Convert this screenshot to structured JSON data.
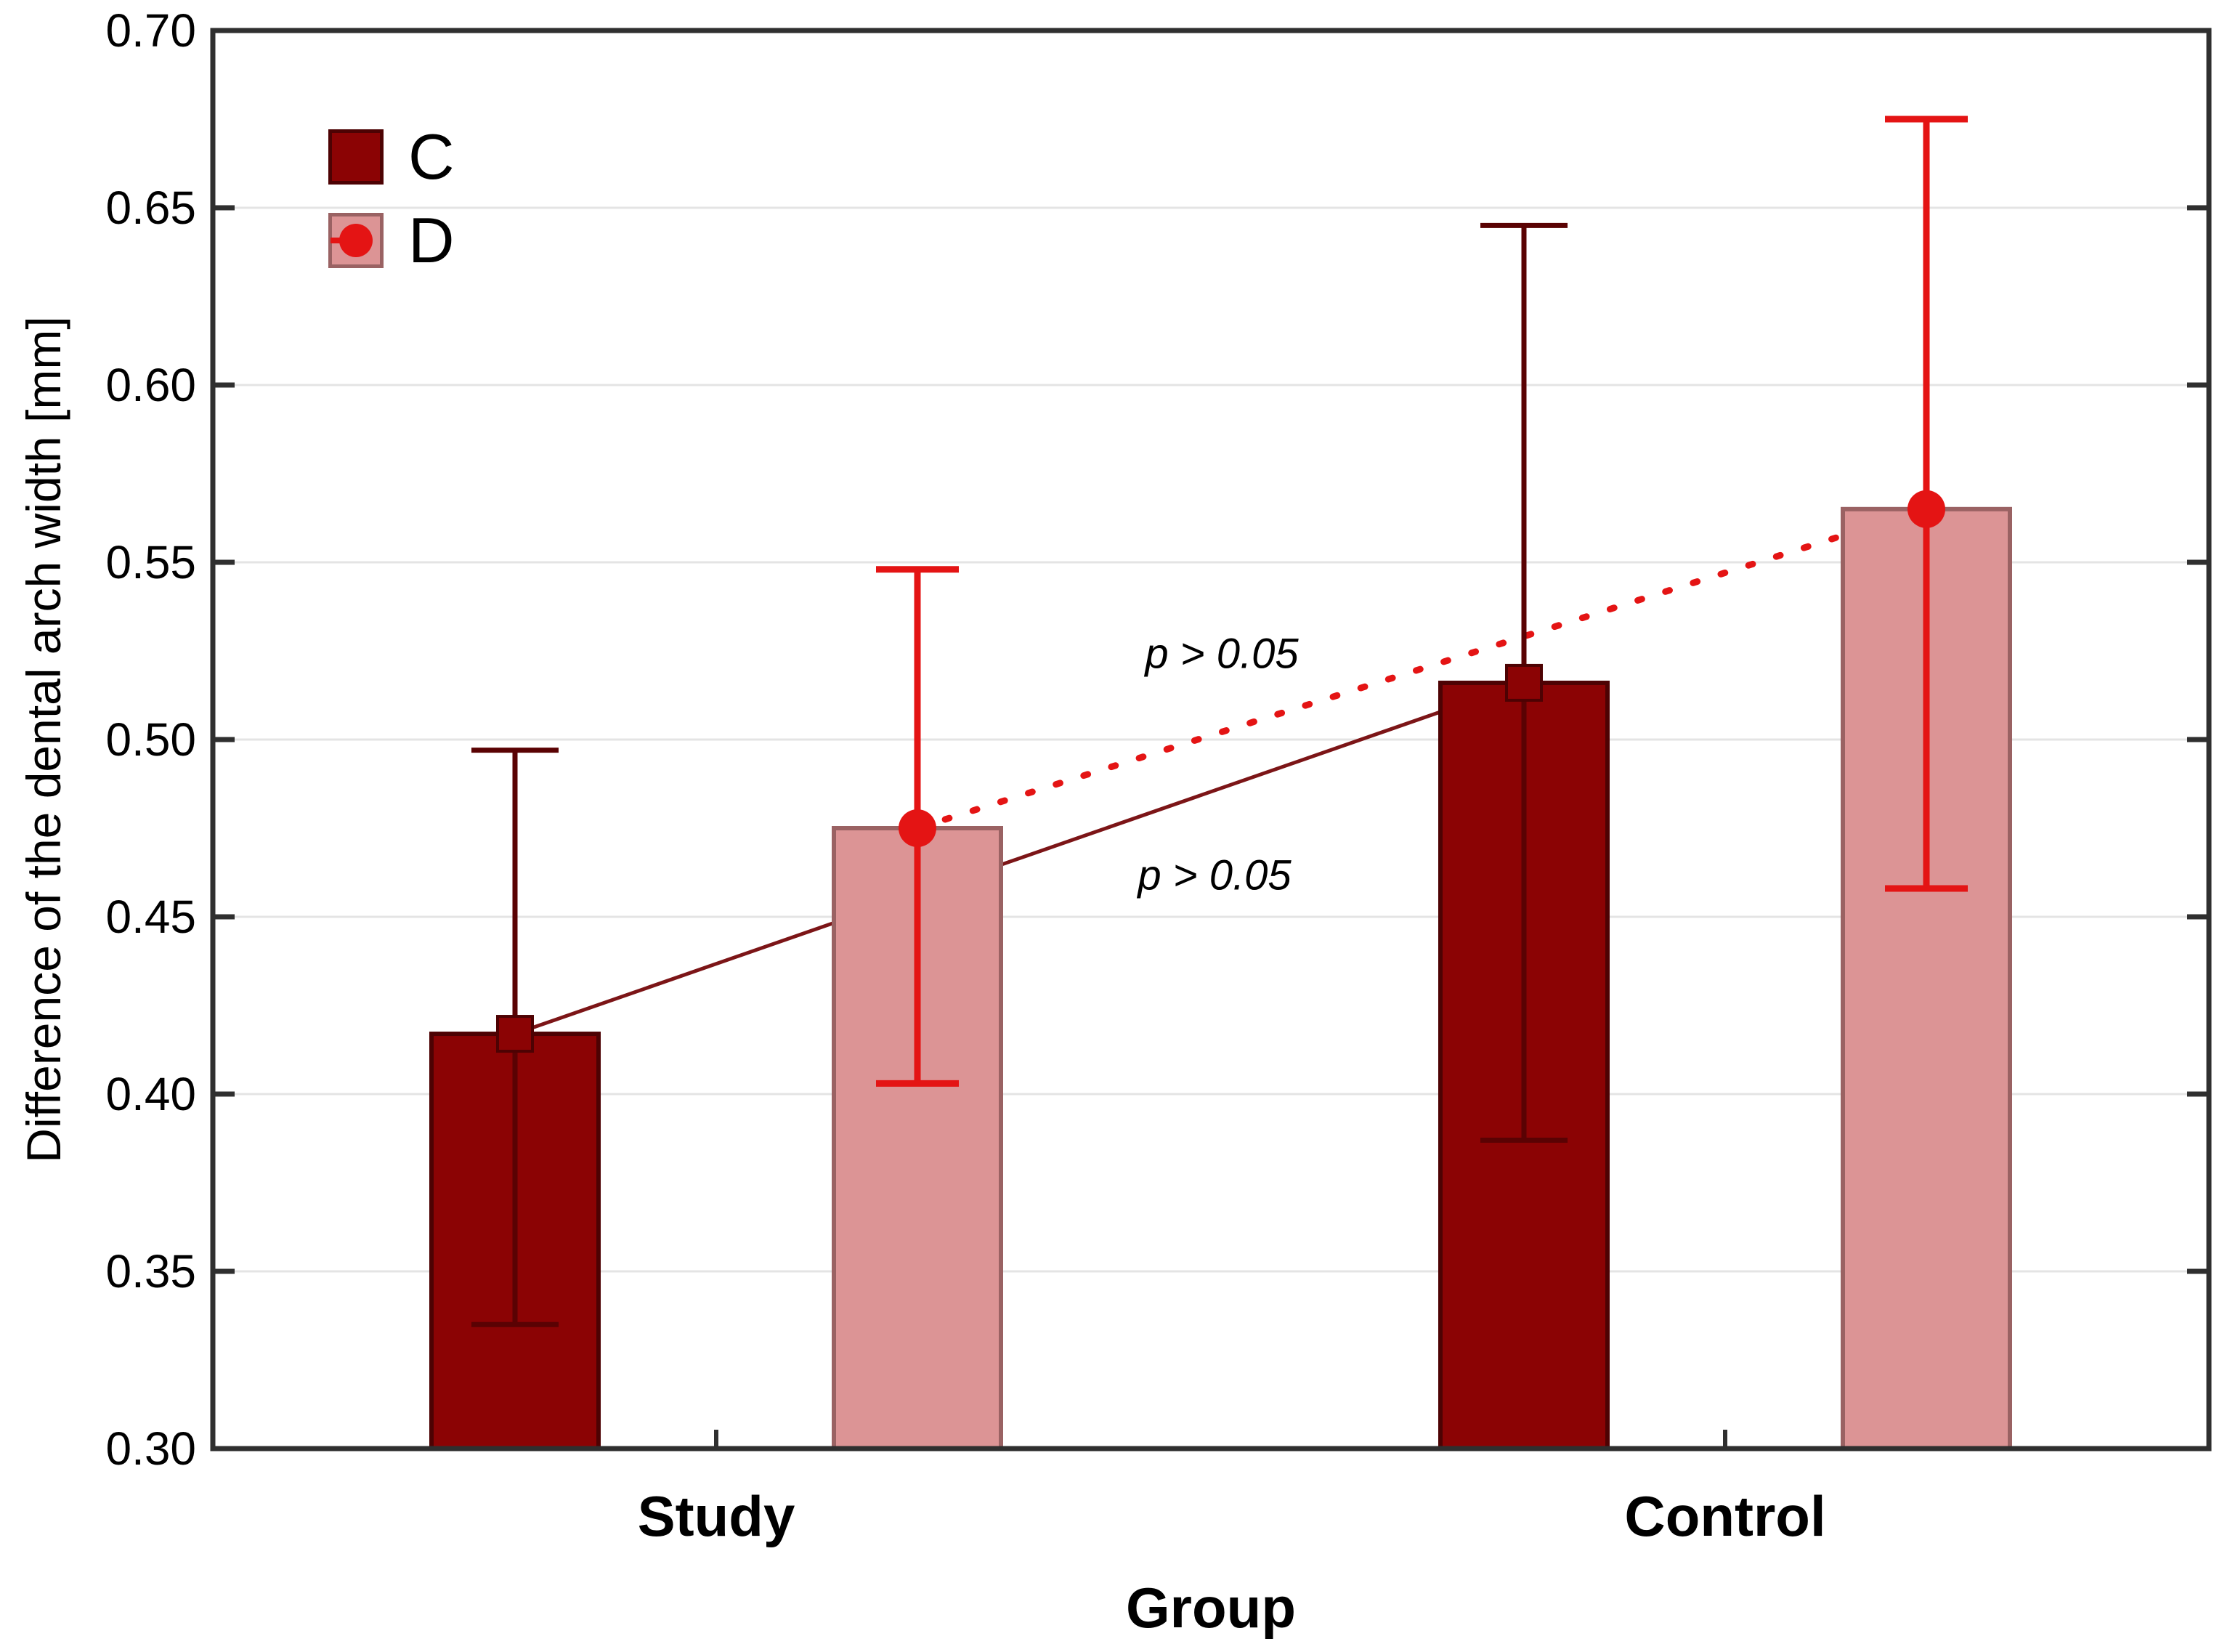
{
  "axes": {
    "ylabel": "Difference of the dental arch width [mm]",
    "xlabel": "Group",
    "yticks": [
      "0.70",
      "0.65",
      "0.60",
      "0.55",
      "0.50",
      "0.45",
      "0.40",
      "0.35",
      "0.30"
    ],
    "categories": [
      "Study",
      "Control"
    ]
  },
  "legend": {
    "items": [
      {
        "label": "C"
      },
      {
        "label": "D"
      }
    ]
  },
  "annotations": [
    {
      "text": "p > 0.05"
    },
    {
      "text": "p > 0.05"
    }
  ],
  "colors": {
    "c_fill": "#8b0304",
    "c_border": "#4d0203",
    "c_whisker": "#5a0203",
    "c_line": "#7c1517",
    "d_fill": "#dc9495",
    "d_border": "#9a6263",
    "d_red": "#e41414",
    "grid": "#e4e4e4",
    "frame": "#2f2f2f"
  },
  "chart_data": {
    "type": "bar",
    "title": "",
    "xlabel": "Group",
    "ylabel": "Difference of the dental arch width [mm]",
    "categories": [
      "Study",
      "Control"
    ],
    "ylim": [
      0.3,
      0.7
    ],
    "ytick_step": 0.05,
    "grid": true,
    "legend_position": "upper-left-inside",
    "series": [
      {
        "name": "C",
        "style": "bar-with-error",
        "marker": "square",
        "connector": "solid",
        "values": [
          0.417,
          0.516
        ],
        "err_upper": [
          0.497,
          0.645
        ],
        "err_lower": [
          0.335,
          0.387
        ]
      },
      {
        "name": "D",
        "style": "bar-with-error",
        "marker": "circle",
        "connector": "dotted",
        "values": [
          0.475,
          0.565
        ],
        "err_upper": [
          0.548,
          0.675
        ],
        "err_lower": [
          0.403,
          0.458
        ]
      }
    ],
    "annotations": [
      {
        "text": "p > 0.05",
        "refers_to": "D-series comparison"
      },
      {
        "text": "p > 0.05",
        "refers_to": "C-series comparison"
      }
    ]
  }
}
